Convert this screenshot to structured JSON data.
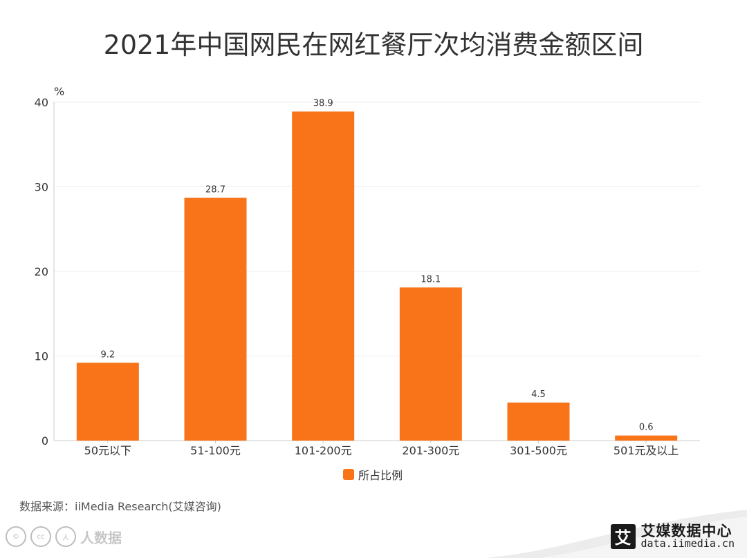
{
  "title": "2021年中国网民在网红餐厅次均消费金额区间",
  "chart_data": {
    "type": "bar",
    "categories": [
      "50元以下",
      "51-100元",
      "101-200元",
      "201-300元",
      "301-500元",
      "501元及以上"
    ],
    "series": [
      {
        "name": "所占比例",
        "values": [
          9.2,
          28.7,
          38.9,
          18.1,
          4.5,
          0.6
        ]
      }
    ],
    "ylabel": "%",
    "ylim": [
      0,
      40
    ],
    "yticks": [
      0,
      10,
      20,
      30,
      40
    ],
    "grid": true,
    "legend": "bottom-center",
    "bar_color": "#f97319"
  },
  "source": "数据来源：iiMedia Research(艾媒咨询)",
  "brand": {
    "logo_char": "艾",
    "name": "艾媒数据中心",
    "url": "data.iimedia.cn"
  },
  "watermark": {
    "badges": [
      "©",
      "cc",
      "人"
    ],
    "text": "人数据"
  }
}
